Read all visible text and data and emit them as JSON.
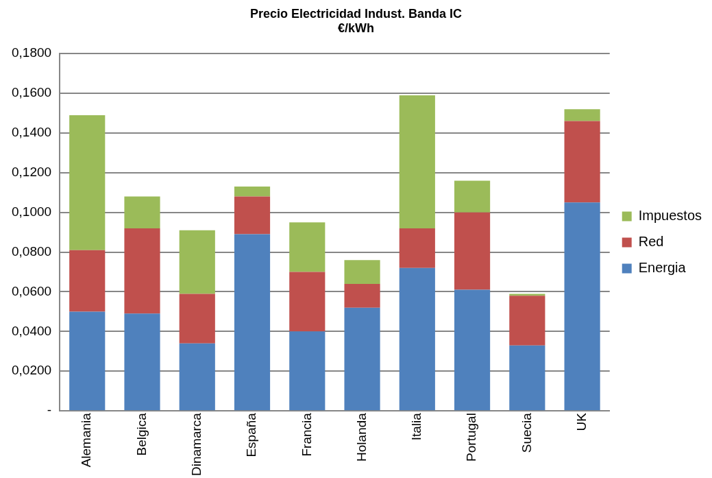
{
  "chart_data": {
    "type": "bar",
    "title": "Precio Electricidad Indust. Banda IC",
    "subtitle": "€/kWh",
    "stacked": true,
    "categories": [
      "Alemania",
      "Belgica",
      "Dinamarca",
      "España",
      "Francia",
      "Holanda",
      "Italia",
      "Portugal",
      "Suecia",
      "UK"
    ],
    "series": [
      {
        "name": "Energia",
        "color": "#4f81bd",
        "values": [
          0.05,
          0.049,
          0.034,
          0.089,
          0.04,
          0.052,
          0.072,
          0.061,
          0.033,
          0.105
        ]
      },
      {
        "name": "Red",
        "color": "#c0504d",
        "values": [
          0.031,
          0.043,
          0.025,
          0.019,
          0.03,
          0.012,
          0.02,
          0.039,
          0.025,
          0.041
        ]
      },
      {
        "name": "Impuestos",
        "color": "#9bbb59",
        "values": [
          0.068,
          0.016,
          0.032,
          0.005,
          0.025,
          0.012,
          0.067,
          0.016,
          0.001,
          0.006
        ]
      }
    ],
    "ylim": [
      0,
      0.18
    ],
    "yticks": [
      {
        "value": 0,
        "label": "-"
      },
      {
        "value": 0.02,
        "label": "0,0200"
      },
      {
        "value": 0.04,
        "label": "0,0400"
      },
      {
        "value": 0.06,
        "label": "0,0600"
      },
      {
        "value": 0.08,
        "label": "0,0800"
      },
      {
        "value": 0.1,
        "label": "0,1000"
      },
      {
        "value": 0.12,
        "label": "0,1200"
      },
      {
        "value": 0.14,
        "label": "0,1400"
      },
      {
        "value": 0.16,
        "label": "0,1600"
      },
      {
        "value": 0.18,
        "label": "0,1800"
      }
    ],
    "grid": "y",
    "legend": "right"
  }
}
